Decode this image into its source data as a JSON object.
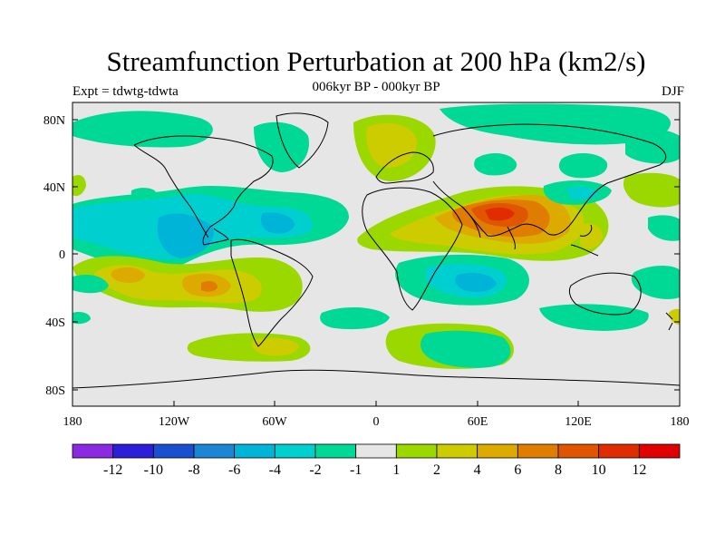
{
  "title": "Streamfunction Perturbation at 200 hPa (km2/s)",
  "left_string": "Expt = tdwtg-tdwta",
  "center_string": "006kyr BP - 000kyr BP",
  "right_string": "DJF",
  "lat_labels": [
    "80N",
    "40N",
    "0",
    "40S",
    "80S"
  ],
  "lon_labels": [
    "180",
    "120W",
    "60W",
    "0",
    "60E",
    "120E",
    "180"
  ],
  "colorbar": {
    "colors": [
      "#8a2be2",
      "#2b1fd9",
      "#1a4fd0",
      "#1c86d6",
      "#00b4d8",
      "#00cfd0",
      "#00d895",
      "#e6e6e6",
      "#9bd800",
      "#cccc00",
      "#ddaa00",
      "#e07c00",
      "#e05500",
      "#e02d00",
      "#e00000"
    ],
    "labels": [
      "-12",
      "-10",
      "-8",
      "-6",
      "-4",
      "-2",
      "-1",
      "1",
      "2",
      "4",
      "6",
      "8",
      "10",
      "12"
    ]
  }
}
